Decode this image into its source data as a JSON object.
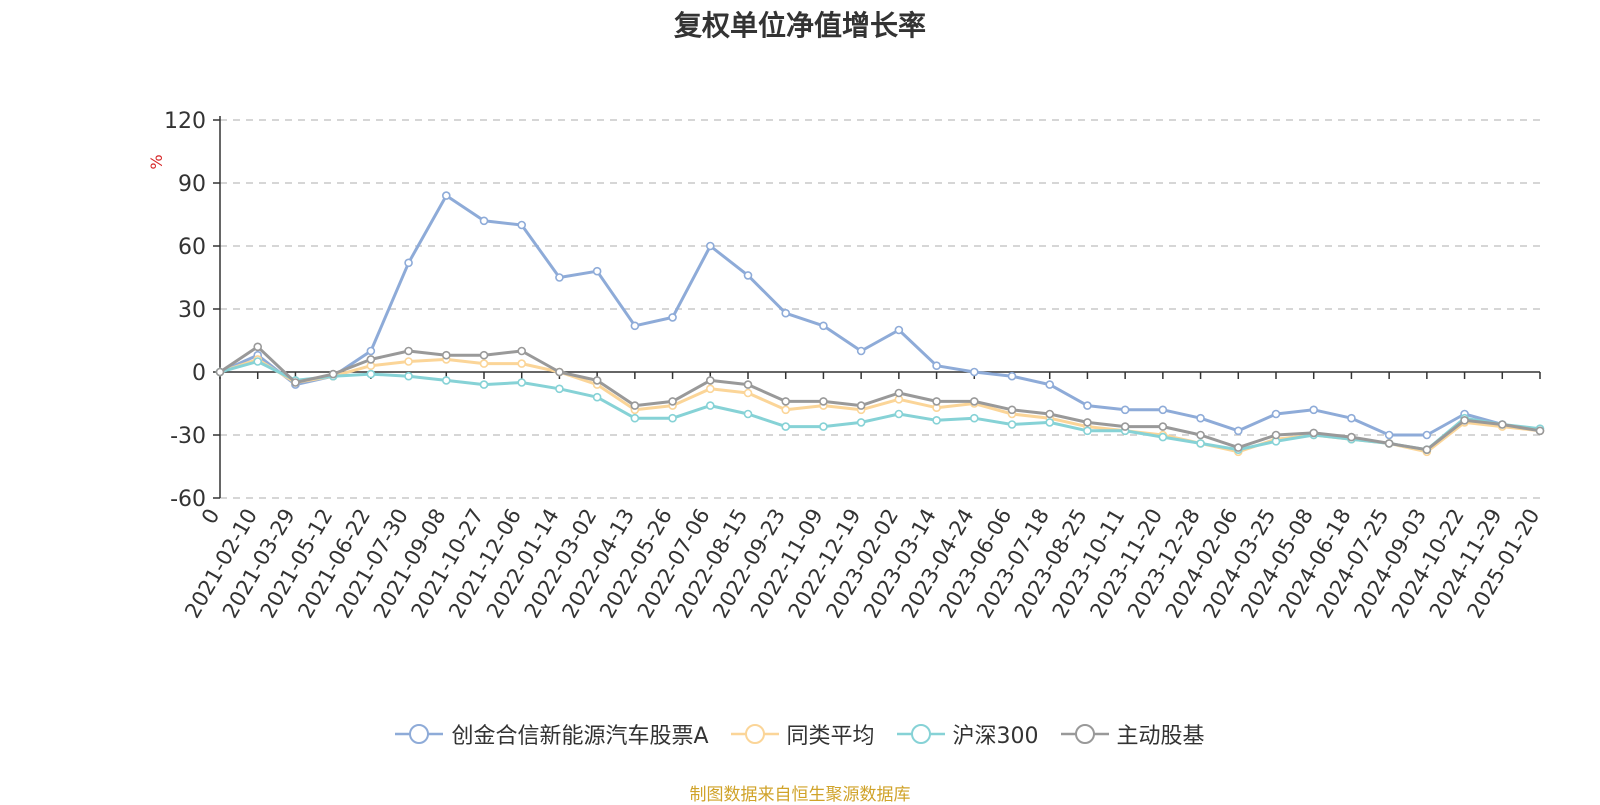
{
  "chart_data": {
    "type": "line",
    "title": "复权单位净值增长率",
    "ylabel": "%",
    "xlabel": "",
    "ylim": [
      -60,
      120
    ],
    "yticks": [
      -60,
      -30,
      0,
      30,
      60,
      90,
      120
    ],
    "grid": true,
    "legend_position": "bottom",
    "source_note": "制图数据来自恒生聚源数据库",
    "x": [
      "0",
      "2021-02-10",
      "2021-03-29",
      "2021-05-12",
      "2021-06-22",
      "2021-07-30",
      "2021-09-08",
      "2021-10-27",
      "2021-12-06",
      "2022-01-14",
      "2022-03-02",
      "2022-04-13",
      "2022-05-26",
      "2022-07-06",
      "2022-08-15",
      "2022-09-23",
      "2022-11-09",
      "2022-12-19",
      "2023-02-02",
      "2023-03-14",
      "2023-04-24",
      "2023-06-06",
      "2023-07-18",
      "2023-08-25",
      "2023-10-11",
      "2023-11-20",
      "2023-12-28",
      "2024-02-06",
      "2024-03-25",
      "2024-05-08",
      "2024-06-18",
      "2024-07-25",
      "2024-09-03",
      "2024-10-22",
      "2024-11-29",
      "2025-01-20"
    ],
    "series": [
      {
        "name": "创金合信新能源汽车股票A",
        "color": "#8eabd8",
        "values": [
          0,
          8,
          -6,
          -2,
          10,
          52,
          84,
          72,
          70,
          45,
          48,
          22,
          26,
          60,
          46,
          28,
          22,
          10,
          20,
          3,
          0,
          -2,
          -6,
          -16,
          -18,
          -18,
          -22,
          -28,
          -20,
          -18,
          -22,
          -30,
          -30,
          -20,
          -25,
          -28
        ]
      },
      {
        "name": "同类平均",
        "color": "#fbd598",
        "values": [
          0,
          6,
          -5,
          -2,
          3,
          5,
          6,
          4,
          4,
          0,
          -6,
          -18,
          -16,
          -8,
          -10,
          -18,
          -16,
          -18,
          -13,
          -17,
          -15,
          -20,
          -22,
          -26,
          -28,
          -30,
          -34,
          -38,
          -32,
          -30,
          -32,
          -34,
          -38,
          -24,
          -26,
          -28
        ]
      },
      {
        "name": "沪深300",
        "color": "#86d2d6",
        "values": [
          0,
          5,
          -4,
          -2,
          -1,
          -2,
          -4,
          -6,
          -5,
          -8,
          -12,
          -22,
          -22,
          -16,
          -20,
          -26,
          -26,
          -24,
          -20,
          -23,
          -22,
          -25,
          -24,
          -28,
          -28,
          -31,
          -34,
          -37,
          -33,
          -30,
          -32,
          -34,
          -37,
          -22,
          -25,
          -27
        ]
      },
      {
        "name": "主动股基",
        "color": "#999999",
        "values": [
          0,
          12,
          -5,
          -1,
          6,
          10,
          8,
          8,
          10,
          0,
          -4,
          -16,
          -14,
          -4,
          -6,
          -14,
          -14,
          -16,
          -10,
          -14,
          -14,
          -18,
          -20,
          -24,
          -26,
          -26,
          -30,
          -36,
          -30,
          -29,
          -31,
          -34,
          -37,
          -23,
          -25,
          -28
        ]
      }
    ]
  }
}
